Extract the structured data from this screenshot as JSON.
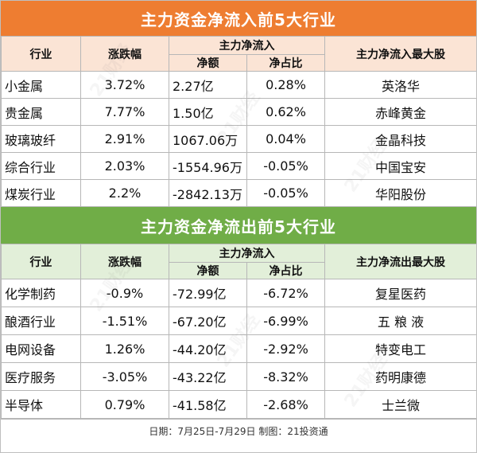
{
  "inflow": {
    "title": "主力资金净流入前5大行业",
    "headers": {
      "industry": "行业",
      "change": "涨跌幅",
      "main_flow": "主力净流入",
      "net_amount": "净额",
      "net_ratio": "净占比",
      "top_stock": "主力净流入最大股"
    },
    "rows": [
      {
        "industry": "小金属",
        "change": "3.72%",
        "net": "2.27亿",
        "ratio": "0.28%",
        "stock": "英洛华"
      },
      {
        "industry": "贵金属",
        "change": "7.77%",
        "net": "1.50亿",
        "ratio": "0.62%",
        "stock": "赤峰黄金"
      },
      {
        "industry": "玻璃玻纤",
        "change": "2.91%",
        "net": "1067.06万",
        "ratio": "0.04%",
        "stock": "金晶科技"
      },
      {
        "industry": "综合行业",
        "change": "2.03%",
        "net": "-1554.96万",
        "ratio": "-0.05%",
        "stock": "中国宝安"
      },
      {
        "industry": "煤炭行业",
        "change": "2.2%",
        "net": "-2842.13万",
        "ratio": "-0.05%",
        "stock": "华阳股份"
      }
    ]
  },
  "outflow": {
    "title": "主力资金净流出前5大行业",
    "headers": {
      "industry": "行业",
      "change": "涨跌幅",
      "main_flow": "主力净流入",
      "net_amount": "净额",
      "net_ratio": "净占比",
      "top_stock": "主力净流出最大股"
    },
    "rows": [
      {
        "industry": "化学制药",
        "change": "-0.9%",
        "net": "-72.99亿",
        "ratio": "-6.72%",
        "stock": "复星医药"
      },
      {
        "industry": "酿酒行业",
        "change": "-1.51%",
        "net": "-67.20亿",
        "ratio": "-6.99%",
        "stock": "五 粮 液"
      },
      {
        "industry": "电网设备",
        "change": "1.26%",
        "net": "-44.20亿",
        "ratio": "-2.92%",
        "stock": "特变电工"
      },
      {
        "industry": "医疗服务",
        "change": "-3.05%",
        "net": "-43.22亿",
        "ratio": "-8.32%",
        "stock": "药明康德"
      },
      {
        "industry": "半导体",
        "change": "0.79%",
        "net": "-41.58亿",
        "ratio": "-2.68%",
        "stock": "士兰微"
      }
    ]
  },
  "footer": "日期：7月25日-7月29日 制图：21投资通",
  "watermark": "21财经",
  "colors": {
    "inflow_title_bg": "#ee7d31",
    "inflow_header_bg": "#fbe4d5",
    "outflow_title_bg": "#70ad47",
    "outflow_header_bg": "#e2efd9"
  }
}
